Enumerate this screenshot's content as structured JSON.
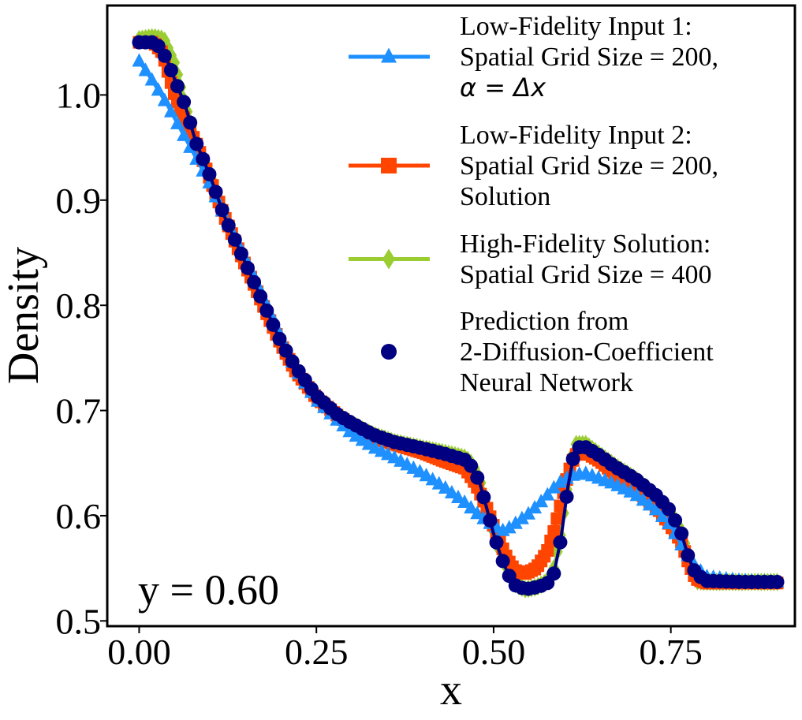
{
  "chart_data": {
    "type": "line",
    "xlabel": "x",
    "ylabel": "Density",
    "xlim": [
      -0.045,
      0.925
    ],
    "ylim": [
      0.495,
      1.085
    ],
    "xticks": [
      0.0,
      0.25,
      0.5,
      0.75
    ],
    "xtick_labels": [
      "0.00",
      "0.25",
      "0.50",
      "0.75"
    ],
    "yticks": [
      0.5,
      0.6,
      0.7,
      0.8,
      0.9,
      1.0
    ],
    "ytick_labels": [
      "0.5",
      "0.6",
      "0.7",
      "0.8",
      "0.9",
      "1.0"
    ],
    "grid": false,
    "legend_position": "top-right",
    "annotation": "y = 0.60",
    "series": [
      {
        "name": "High-Fidelity Solution: Spatial Grid Size = 400",
        "legend_lines": [
          "High-Fidelity Solution:",
          "Spatial Grid Size = 400"
        ],
        "color": "#9acd32",
        "marker": "diamond",
        "points": [
          [
            0.0,
            1.053
          ],
          [
            0.02,
            1.055
          ],
          [
            0.035,
            1.053
          ],
          [
            0.05,
            1.03
          ],
          [
            0.065,
            0.99
          ],
          [
            0.08,
            0.955
          ],
          [
            0.1,
            0.925
          ],
          [
            0.12,
            0.885
          ],
          [
            0.14,
            0.855
          ],
          [
            0.16,
            0.825
          ],
          [
            0.18,
            0.795
          ],
          [
            0.2,
            0.765
          ],
          [
            0.22,
            0.74
          ],
          [
            0.25,
            0.713
          ],
          [
            0.28,
            0.695
          ],
          [
            0.3,
            0.687
          ],
          [
            0.33,
            0.677
          ],
          [
            0.36,
            0.67
          ],
          [
            0.4,
            0.664
          ],
          [
            0.43,
            0.66
          ],
          [
            0.46,
            0.655
          ],
          [
            0.47,
            0.649
          ],
          [
            0.48,
            0.635
          ],
          [
            0.49,
            0.61
          ],
          [
            0.5,
            0.585
          ],
          [
            0.51,
            0.565
          ],
          [
            0.52,
            0.548
          ],
          [
            0.53,
            0.535
          ],
          [
            0.545,
            0.53
          ],
          [
            0.56,
            0.532
          ],
          [
            0.575,
            0.537
          ],
          [
            0.585,
            0.55
          ],
          [
            0.595,
            0.585
          ],
          [
            0.605,
            0.635
          ],
          [
            0.615,
            0.668
          ],
          [
            0.63,
            0.668
          ],
          [
            0.65,
            0.658
          ],
          [
            0.67,
            0.648
          ],
          [
            0.7,
            0.635
          ],
          [
            0.73,
            0.618
          ],
          [
            0.75,
            0.603
          ],
          [
            0.765,
            0.585
          ],
          [
            0.775,
            0.56
          ],
          [
            0.785,
            0.538
          ],
          [
            0.8,
            0.537
          ],
          [
            0.85,
            0.537
          ],
          [
            0.9,
            0.537
          ]
        ]
      },
      {
        "name": "Low-Fidelity Input 2: Spatial Grid Size = 200, Solution",
        "legend_lines": [
          "Low-Fidelity Input 2:",
          "Spatial Grid Size = 200,",
          "Solution"
        ],
        "color": "#ff4500",
        "marker": "square",
        "points": [
          [
            0.0,
            1.05
          ],
          [
            0.02,
            1.05
          ],
          [
            0.033,
            1.04
          ],
          [
            0.05,
            1.0
          ],
          [
            0.065,
            0.975
          ],
          [
            0.08,
            0.955
          ],
          [
            0.1,
            0.92
          ],
          [
            0.12,
            0.885
          ],
          [
            0.14,
            0.853
          ],
          [
            0.16,
            0.823
          ],
          [
            0.18,
            0.792
          ],
          [
            0.2,
            0.763
          ],
          [
            0.22,
            0.738
          ],
          [
            0.25,
            0.712
          ],
          [
            0.28,
            0.695
          ],
          [
            0.3,
            0.686
          ],
          [
            0.33,
            0.675
          ],
          [
            0.36,
            0.668
          ],
          [
            0.4,
            0.66
          ],
          [
            0.43,
            0.652
          ],
          [
            0.46,
            0.645
          ],
          [
            0.475,
            0.63
          ],
          [
            0.49,
            0.608
          ],
          [
            0.5,
            0.59
          ],
          [
            0.51,
            0.573
          ],
          [
            0.52,
            0.558
          ],
          [
            0.53,
            0.548
          ],
          [
            0.545,
            0.545
          ],
          [
            0.56,
            0.55
          ],
          [
            0.575,
            0.565
          ],
          [
            0.585,
            0.585
          ],
          [
            0.595,
            0.612
          ],
          [
            0.605,
            0.64
          ],
          [
            0.615,
            0.658
          ],
          [
            0.63,
            0.66
          ],
          [
            0.65,
            0.652
          ],
          [
            0.67,
            0.64
          ],
          [
            0.7,
            0.625
          ],
          [
            0.73,
            0.608
          ],
          [
            0.75,
            0.59
          ],
          [
            0.765,
            0.575
          ],
          [
            0.775,
            0.555
          ],
          [
            0.785,
            0.54
          ],
          [
            0.8,
            0.536
          ],
          [
            0.85,
            0.536
          ],
          [
            0.9,
            0.536
          ]
        ]
      },
      {
        "name": "Low-Fidelity Input 1: Spatial Grid Size = 200, α = Δx",
        "legend_lines": [
          "Low-Fidelity Input 1:",
          "Spatial Grid Size = 200,"
        ],
        "legend_math": "α = Δx",
        "color": "#1e90ff",
        "marker": "triangle",
        "points": [
          [
            0.0,
            1.032
          ],
          [
            0.02,
            1.012
          ],
          [
            0.04,
            0.99
          ],
          [
            0.06,
            0.965
          ],
          [
            0.08,
            0.94
          ],
          [
            0.1,
            0.915
          ],
          [
            0.12,
            0.885
          ],
          [
            0.14,
            0.858
          ],
          [
            0.16,
            0.83
          ],
          [
            0.18,
            0.8
          ],
          [
            0.2,
            0.77
          ],
          [
            0.22,
            0.74
          ],
          [
            0.25,
            0.71
          ],
          [
            0.28,
            0.69
          ],
          [
            0.3,
            0.678
          ],
          [
            0.33,
            0.665
          ],
          [
            0.36,
            0.655
          ],
          [
            0.4,
            0.64
          ],
          [
            0.43,
            0.627
          ],
          [
            0.46,
            0.612
          ],
          [
            0.48,
            0.6
          ],
          [
            0.5,
            0.59
          ],
          [
            0.515,
            0.585
          ],
          [
            0.53,
            0.592
          ],
          [
            0.55,
            0.602
          ],
          [
            0.57,
            0.615
          ],
          [
            0.59,
            0.63
          ],
          [
            0.61,
            0.638
          ],
          [
            0.63,
            0.64
          ],
          [
            0.65,
            0.635
          ],
          [
            0.67,
            0.63
          ],
          [
            0.7,
            0.62
          ],
          [
            0.73,
            0.605
          ],
          [
            0.75,
            0.59
          ],
          [
            0.765,
            0.572
          ],
          [
            0.78,
            0.555
          ],
          [
            0.8,
            0.542
          ],
          [
            0.85,
            0.538
          ],
          [
            0.9,
            0.537
          ]
        ]
      },
      {
        "name": "Prediction from 2-Diffusion-Coefficient Neural Network",
        "legend_lines": [
          "Prediction from",
          "2-Diffusion-Coefficient",
          "Neural Network"
        ],
        "color": "#000080",
        "marker": "circle",
        "points": [
          [
            0.0,
            1.05
          ],
          [
            0.02,
            1.05
          ],
          [
            0.03,
            1.045
          ],
          [
            0.04,
            1.032
          ],
          [
            0.05,
            1.015
          ],
          [
            0.065,
            0.99
          ],
          [
            0.08,
            0.955
          ],
          [
            0.1,
            0.923
          ],
          [
            0.12,
            0.885
          ],
          [
            0.14,
            0.855
          ],
          [
            0.16,
            0.825
          ],
          [
            0.18,
            0.795
          ],
          [
            0.2,
            0.765
          ],
          [
            0.22,
            0.742
          ],
          [
            0.25,
            0.714
          ],
          [
            0.28,
            0.696
          ],
          [
            0.3,
            0.688
          ],
          [
            0.33,
            0.677
          ],
          [
            0.36,
            0.67
          ],
          [
            0.4,
            0.664
          ],
          [
            0.43,
            0.659
          ],
          [
            0.46,
            0.653
          ],
          [
            0.47,
            0.646
          ],
          [
            0.48,
            0.632
          ],
          [
            0.49,
            0.608
          ],
          [
            0.5,
            0.583
          ],
          [
            0.51,
            0.562
          ],
          [
            0.52,
            0.545
          ],
          [
            0.53,
            0.534
          ],
          [
            0.545,
            0.53
          ],
          [
            0.56,
            0.532
          ],
          [
            0.575,
            0.535
          ],
          [
            0.585,
            0.545
          ],
          [
            0.595,
            0.578
          ],
          [
            0.605,
            0.628
          ],
          [
            0.615,
            0.665
          ],
          [
            0.63,
            0.665
          ],
          [
            0.65,
            0.657
          ],
          [
            0.67,
            0.647
          ],
          [
            0.7,
            0.635
          ],
          [
            0.73,
            0.619
          ],
          [
            0.75,
            0.604
          ],
          [
            0.765,
            0.583
          ],
          [
            0.775,
            0.56
          ],
          [
            0.785,
            0.545
          ],
          [
            0.8,
            0.538
          ],
          [
            0.85,
            0.537
          ],
          [
            0.9,
            0.537
          ]
        ]
      }
    ]
  }
}
